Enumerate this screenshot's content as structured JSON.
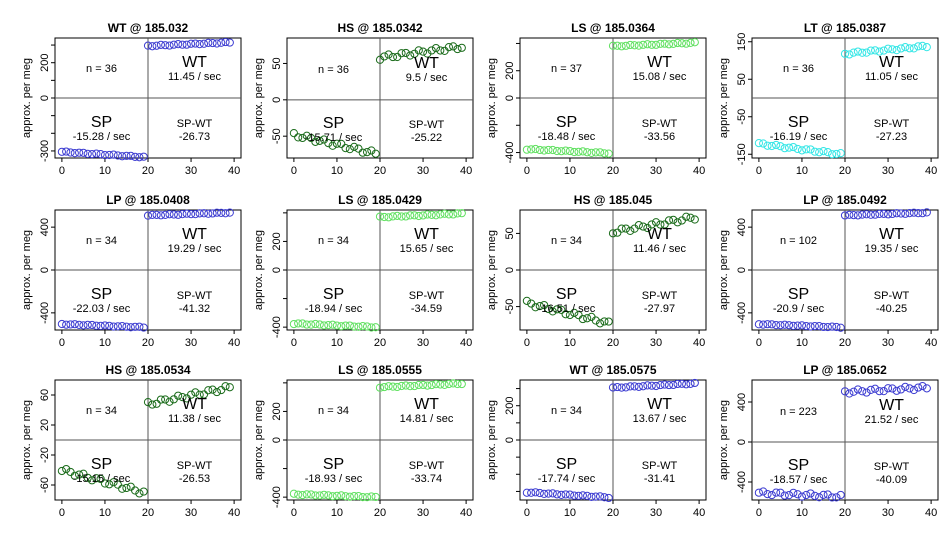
{
  "ylabel": "approx. per meg",
  "xticks": [
    0,
    10,
    20,
    30,
    40
  ],
  "chart_data": [
    {
      "type": "scatter",
      "title": "WT @ 185.032",
      "ylim": [
        -340,
        340
      ],
      "yticks": [
        -300,
        -200,
        -100,
        0,
        100,
        200,
        300
      ],
      "yticklabels": [
        "-300",
        "",
        "",
        "0",
        "",
        "200",
        ""
      ],
      "n": "n = 36",
      "wt_rate": "11.45 / sec",
      "sp_rate": "-15.28 / sec",
      "sp_wt": "-26.73",
      "color": "#3b3bd1",
      "sp_start": -305,
      "sp_end": -335,
      "wt_start": 295,
      "wt_end": 315,
      "noise": 3
    },
    {
      "type": "scatter",
      "title": "HS @ 185.0342",
      "ylim": [
        -80,
        85
      ],
      "yticks": [
        -50,
        0,
        50
      ],
      "yticklabels": [
        "-50",
        "0",
        "50"
      ],
      "n": "n = 36",
      "wt_rate": "9.5 / sec",
      "sp_rate": "-15.71 / sec",
      "sp_wt": "-25.22",
      "color": "#1a6b1a",
      "sp_start": -48,
      "sp_end": -74,
      "wt_start": 58,
      "wt_end": 73,
      "noise": 3
    },
    {
      "type": "scatter",
      "title": "LS @ 185.0364",
      "ylim": [
        -440,
        440
      ],
      "yticks": [
        -400,
        -200,
        0,
        200,
        400
      ],
      "yticklabels": [
        "-400",
        "",
        "0",
        "200",
        ""
      ],
      "n": "n = 37",
      "wt_rate": "15.08 / sec",
      "sp_rate": "-18.48 / sec",
      "sp_wt": "-33.56",
      "color": "#5fe05f",
      "sp_start": -375,
      "sp_end": -405,
      "wt_start": 380,
      "wt_end": 405,
      "noise": 4
    },
    {
      "type": "scatter",
      "title": "LT @ 185.0387",
      "ylim": [
        -160,
        160
      ],
      "yticks": [
        -150,
        -50,
        50,
        150
      ],
      "yticklabels": [
        "-150",
        "-50",
        "50",
        "150"
      ],
      "n": "n = 36",
      "wt_rate": "11.05 / sec",
      "sp_rate": "-16.19 / sec",
      "sp_wt": "-27.23",
      "color": "#33e6e6",
      "sp_start": -122,
      "sp_end": -150,
      "wt_start": 118,
      "wt_end": 138,
      "noise": 3
    },
    {
      "type": "scatter",
      "title": "LP @ 185.0408",
      "ylim": [
        -560,
        560
      ],
      "yticks": [
        -400,
        0,
        400
      ],
      "yticklabels": [
        "-400",
        "0",
        "400"
      ],
      "n": "n = 34",
      "wt_rate": "19.29 / sec",
      "sp_rate": "-22.03 / sec",
      "sp_wt": "-41.32",
      "color": "#3b3bd1",
      "sp_start": -505,
      "sp_end": -535,
      "wt_start": 510,
      "wt_end": 535,
      "noise": 4
    },
    {
      "type": "scatter",
      "title": "LS @ 185.0429",
      "ylim": [
        -420,
        420
      ],
      "yticks": [
        -400,
        -200,
        0,
        200,
        400
      ],
      "yticklabels": [
        "-400",
        "",
        "0",
        "200",
        ""
      ],
      "n": "n = 34",
      "wt_rate": "15.65 / sec",
      "sp_rate": "-18.94 / sec",
      "sp_wt": "-34.59",
      "color": "#5fe05f",
      "sp_start": -375,
      "sp_end": -400,
      "wt_start": 370,
      "wt_end": 395,
      "noise": 4
    },
    {
      "type": "scatter",
      "title": "HS @ 185.045",
      "ylim": [
        -82,
        82
      ],
      "yticks": [
        -50,
        0,
        50
      ],
      "yticklabels": [
        "-50",
        "0",
        "50"
      ],
      "n": "n = 34",
      "wt_rate": "11.46 / sec",
      "sp_rate": "-16.51 / sec",
      "sp_wt": "-27.97",
      "color": "#1a6b1a",
      "sp_start": -45,
      "sp_end": -73,
      "wt_start": 52,
      "wt_end": 72,
      "noise": 3
    },
    {
      "type": "scatter",
      "title": "LP @ 185.0492",
      "ylim": [
        -560,
        560
      ],
      "yticks": [
        -400,
        0,
        400
      ],
      "yticklabels": [
        "-400",
        "0",
        "400"
      ],
      "n": "n = 102",
      "wt_rate": "19.35 / sec",
      "sp_rate": "-20.9 / sec",
      "sp_wt": "-40.25",
      "color": "#3b3bd1",
      "sp_start": -505,
      "sp_end": -535,
      "wt_start": 510,
      "wt_end": 535,
      "noise": 4
    },
    {
      "type": "scatter",
      "title": "HS @ 185.0534",
      "ylim": [
        -80,
        80
      ],
      "yticks": [
        -60,
        -20,
        20,
        60
      ],
      "yticklabels": [
        "-60",
        "-20",
        "20",
        "60"
      ],
      "n": "n = 34",
      "wt_rate": "11.38 / sec",
      "sp_rate": "-15.15 / sec",
      "sp_wt": "-26.53",
      "color": "#1a6b1a",
      "sp_start": -40,
      "sp_end": -70,
      "wt_start": 48,
      "wt_end": 70,
      "noise": 3
    },
    {
      "type": "scatter",
      "title": "LS @ 185.0555",
      "ylim": [
        -420,
        420
      ],
      "yticks": [
        -400,
        -200,
        0,
        200,
        400
      ],
      "yticklabels": [
        "-400",
        "",
        "0",
        "200",
        ""
      ],
      "n": "n = 34",
      "wt_rate": "14.81 / sec",
      "sp_rate": "-18.93 / sec",
      "sp_wt": "-33.74",
      "color": "#5fe05f",
      "sp_start": -380,
      "sp_end": -400,
      "wt_start": 370,
      "wt_end": 395,
      "noise": 4
    },
    {
      "type": "scatter",
      "title": "WT @ 185.0575",
      "ylim": [
        -350,
        350
      ],
      "yticks": [
        -300,
        -200,
        -100,
        0,
        100,
        200,
        300
      ],
      "yticklabels": [
        "",
        "",
        "",
        "0",
        "",
        "200",
        ""
      ],
      "n": "n = 34",
      "wt_rate": "13.67 / sec",
      "sp_rate": "-17.74 / sec",
      "sp_wt": "-31.41",
      "color": "#3b3bd1",
      "sp_start": -305,
      "sp_end": -335,
      "wt_start": 305,
      "wt_end": 330,
      "noise": 3
    },
    {
      "type": "scatter",
      "title": "LP @ 185.0652",
      "ylim": [
        -580,
        620
      ],
      "yticks": [
        -400,
        0,
        400
      ],
      "yticklabels": [
        "-400",
        "0",
        "400"
      ],
      "n": "n = 223",
      "wt_rate": "21.52 / sec",
      "sp_rate": "-18.57 / sec",
      "sp_wt": "-40.09",
      "color": "#3b3bd1",
      "sp_start": -510,
      "sp_end": -545,
      "wt_start": 500,
      "wt_end": 545,
      "noise": 18
    }
  ]
}
